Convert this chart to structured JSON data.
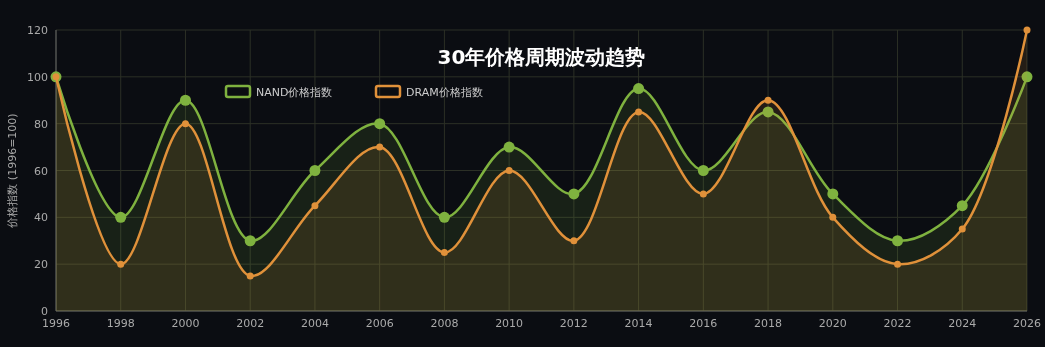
{
  "chart_data": {
    "type": "area",
    "title": "30年价格周期波动趋势",
    "ylabel": "价格指数 (1996=100)",
    "x": [
      1996,
      1998,
      2000,
      2002,
      2004,
      2006,
      2008,
      2010,
      2012,
      2014,
      2016,
      2018,
      2020,
      2022,
      2024,
      2026
    ],
    "series": [
      {
        "name": "NAND价格指数",
        "color": "#7fb23f",
        "values": [
          100,
          40,
          90,
          30,
          60,
          80,
          40,
          70,
          50,
          95,
          60,
          85,
          50,
          30,
          45,
          100
        ]
      },
      {
        "name": "DRAM价格指数",
        "color": "#e0913a",
        "values": [
          100,
          20,
          80,
          15,
          45,
          70,
          25,
          60,
          30,
          85,
          50,
          90,
          40,
          20,
          35,
          120
        ]
      }
    ],
    "xlim": [
      1996,
      2026
    ],
    "xticks": [
      1996,
      1998,
      2000,
      2002,
      2004,
      2006,
      2008,
      2010,
      2012,
      2014,
      2016,
      2018,
      2020,
      2022,
      2024,
      2026
    ],
    "ylim": [
      0,
      120
    ],
    "yticks": [
      0,
      20,
      40,
      60,
      80,
      100,
      120
    ],
    "grid": true,
    "legend": "top",
    "marker": "circle",
    "line_style": "solid"
  }
}
